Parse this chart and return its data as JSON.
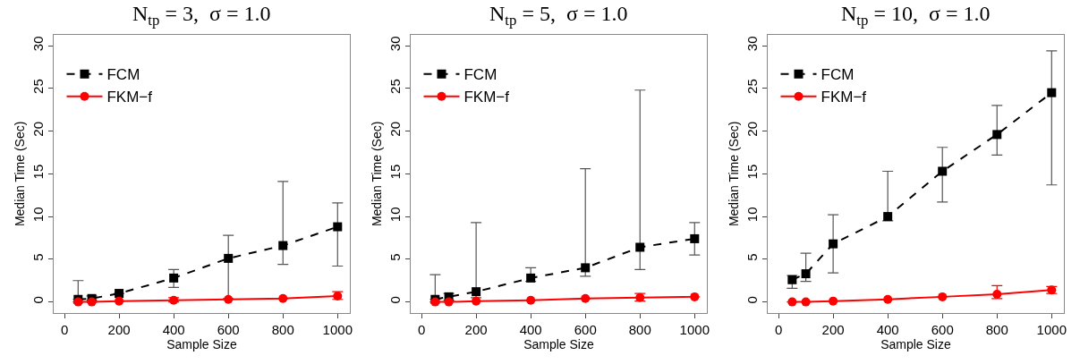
{
  "chart_data": [
    {
      "type": "line",
      "title": "N$_{tp}$ = 3,  σ = 1.0",
      "xlabel": "Sample Size",
      "ylabel": "Median Time (Sec)",
      "x": [
        50,
        100,
        200,
        400,
        600,
        800,
        1000
      ],
      "xlim": [
        -40,
        1045
      ],
      "xticks": [
        0,
        200,
        400,
        600,
        800,
        1000
      ],
      "ylim": [
        -1.3,
        31.3
      ],
      "yticks": [
        0,
        5,
        10,
        15,
        20,
        25,
        30
      ],
      "legend": "top left",
      "series": [
        {
          "name": "FCM",
          "color": "#000000",
          "marker": "square",
          "line_style": "dashed",
          "values": [
            0.3,
            0.4,
            1.0,
            2.8,
            5.1,
            6.6,
            8.8
          ],
          "errors": [
            [
              0.3,
              2.5
            ],
            [
              0.2,
              0.7
            ],
            null,
            [
              1.7,
              3.8
            ],
            [
              0.4,
              7.8
            ],
            [
              4.4,
              14.1
            ],
            [
              4.2,
              11.6
            ]
          ]
        },
        {
          "name": "FKM−f",
          "color": "#ff0000",
          "marker": "circle",
          "line_style": "solid",
          "values": [
            0.0,
            0.0,
            0.1,
            0.2,
            0.3,
            0.4,
            0.7
          ],
          "errors": [
            null,
            null,
            null,
            [
              0.0,
              0.5
            ],
            null,
            null,
            [
              0.3,
              1.2
            ]
          ]
        }
      ]
    },
    {
      "type": "line",
      "title": "N$_{tp}$ = 5,  σ = 1.0",
      "xlabel": "Sample Size",
      "ylabel": "Median Time (Sec)",
      "x": [
        50,
        100,
        200,
        400,
        600,
        800,
        1000
      ],
      "xlim": [
        -40,
        1045
      ],
      "xticks": [
        0,
        200,
        400,
        600,
        800,
        1000
      ],
      "ylim": [
        -1.3,
        31.3
      ],
      "yticks": [
        0,
        5,
        10,
        15,
        20,
        25,
        30
      ],
      "legend": "top left",
      "series": [
        {
          "name": "FCM",
          "color": "#000000",
          "marker": "square",
          "line_style": "dashed",
          "values": [
            0.3,
            0.6,
            1.2,
            2.8,
            4.0,
            6.4,
            7.4
          ],
          "errors": [
            [
              0.3,
              3.2
            ],
            [
              0.2,
              1.0
            ],
            [
              0.5,
              9.3
            ],
            [
              2.4,
              4.0
            ],
            [
              3.0,
              15.6
            ],
            [
              3.8,
              24.8
            ],
            [
              5.5,
              9.3
            ]
          ]
        },
        {
          "name": "FKM−f",
          "color": "#ff0000",
          "marker": "circle",
          "line_style": "solid",
          "values": [
            0.0,
            0.0,
            0.1,
            0.2,
            0.4,
            0.5,
            0.6
          ],
          "errors": [
            null,
            null,
            null,
            null,
            null,
            [
              0.1,
              1.0
            ],
            null
          ]
        }
      ]
    },
    {
      "type": "line",
      "title": "N$_{tp}$ = 10,  σ = 1.0",
      "xlabel": "Sample Size",
      "ylabel": "Median Time (Sec)",
      "x": [
        50,
        100,
        200,
        400,
        600,
        800,
        1000
      ],
      "xlim": [
        -40,
        1045
      ],
      "xticks": [
        0,
        200,
        400,
        600,
        800,
        1000
      ],
      "ylim": [
        -1.3,
        31.3
      ],
      "yticks": [
        0,
        5,
        10,
        15,
        20,
        25,
        30
      ],
      "legend": "top left",
      "series": [
        {
          "name": "FCM",
          "color": "#000000",
          "marker": "square",
          "line_style": "dashed",
          "values": [
            2.6,
            3.3,
            6.8,
            10.0,
            15.3,
            19.6,
            24.5
          ],
          "errors": [
            [
              1.6,
              3.1
            ],
            [
              2.4,
              5.7
            ],
            [
              3.4,
              10.2
            ],
            [
              9.5,
              15.3
            ],
            [
              11.7,
              18.1
            ],
            [
              17.2,
              23.0
            ],
            [
              13.7,
              29.4
            ]
          ]
        },
        {
          "name": "FKM−f",
          "color": "#ff0000",
          "marker": "circle",
          "line_style": "solid",
          "values": [
            0.0,
            0.0,
            0.1,
            0.3,
            0.6,
            0.9,
            1.4
          ],
          "errors": [
            null,
            null,
            null,
            null,
            null,
            [
              0.4,
              1.9
            ],
            [
              1.0,
              1.8
            ]
          ]
        }
      ]
    }
  ]
}
